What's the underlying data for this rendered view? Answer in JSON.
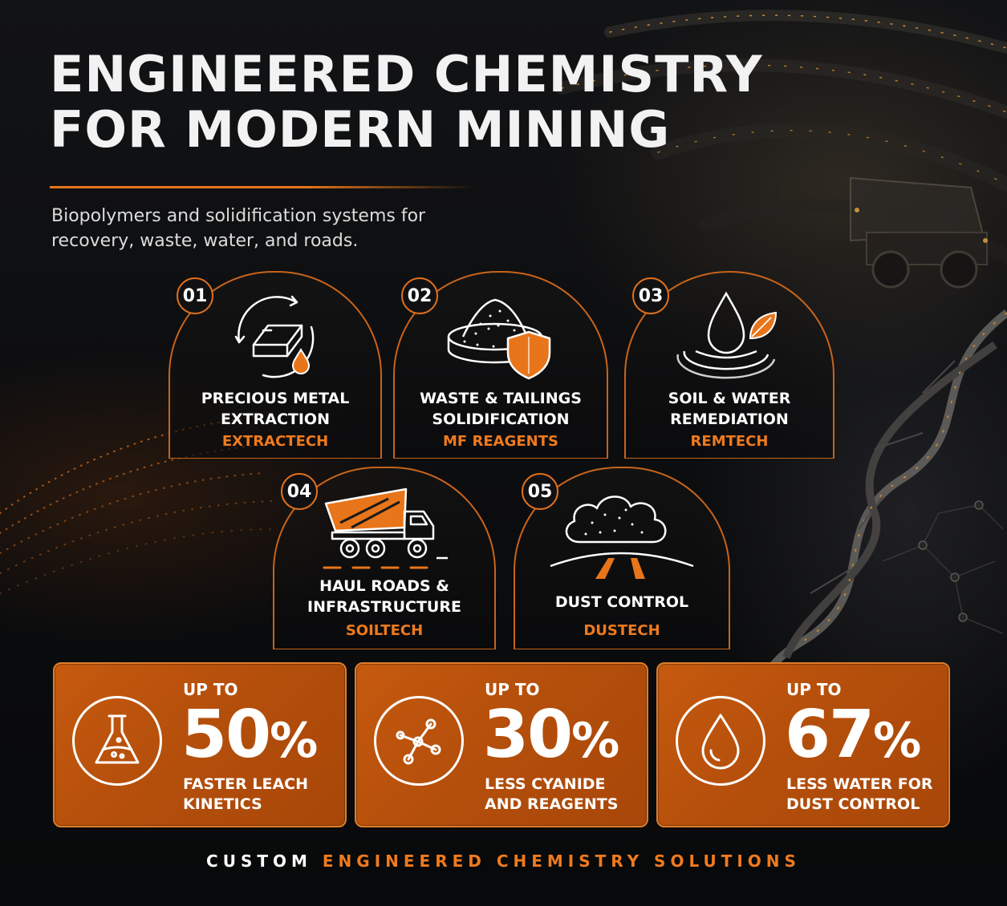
{
  "header": {
    "title_line1": "ENGINEERED CHEMISTRY",
    "title_line2": "FOR MODERN MINING",
    "subtitle": "Biopolymers and solidification systems for recovery, waste, water, and roads."
  },
  "solutions": [
    {
      "number": "01",
      "title_line1": "PRECIOUS METAL",
      "title_line2": "EXTRACTION",
      "brand": "EXTRACTECH",
      "icon": "gold-bar-cycle-icon"
    },
    {
      "number": "02",
      "title_line1": "WASTE & TAILINGS",
      "title_line2": "SOLIDIFICATION",
      "brand": "MF REAGENTS",
      "icon": "tailings-shield-icon"
    },
    {
      "number": "03",
      "title_line1": "SOIL & WATER",
      "title_line2": "REMEDIATION",
      "brand": "REMTECH",
      "icon": "water-drop-leaf-icon"
    },
    {
      "number": "04",
      "title_line1": "HAUL ROADS &",
      "title_line2": "INFRASTRUCTURE",
      "brand": "SOILTECH",
      "icon": "haul-truck-icon"
    },
    {
      "number": "05",
      "title_line1": "DUST CONTROL",
      "title_line2": "",
      "brand": "DUSTECH",
      "icon": "dust-cloud-road-icon"
    }
  ],
  "stats": [
    {
      "prefix": "UP TO",
      "value": "50",
      "unit": "%",
      "desc_line1": "FASTER LEACH",
      "desc_line2": "KINETICS",
      "icon": "flask-icon"
    },
    {
      "prefix": "UP TO",
      "value": "30",
      "unit": "%",
      "desc_line1": "LESS CYANIDE",
      "desc_line2": "AND REAGENTS",
      "icon": "molecule-icon"
    },
    {
      "prefix": "UP TO",
      "value": "67",
      "unit": "%",
      "desc_line1": "LESS WATER FOR",
      "desc_line2": "DUST CONTROL",
      "icon": "water-drop-icon"
    }
  ],
  "footer": {
    "part1": "CUSTOM",
    "part2": "ENGINEERED CHEMISTRY SOLUTIONS"
  },
  "colors": {
    "accent": "#e8751a",
    "stat_bg": "#b8520c",
    "background": "#0d0e10"
  }
}
